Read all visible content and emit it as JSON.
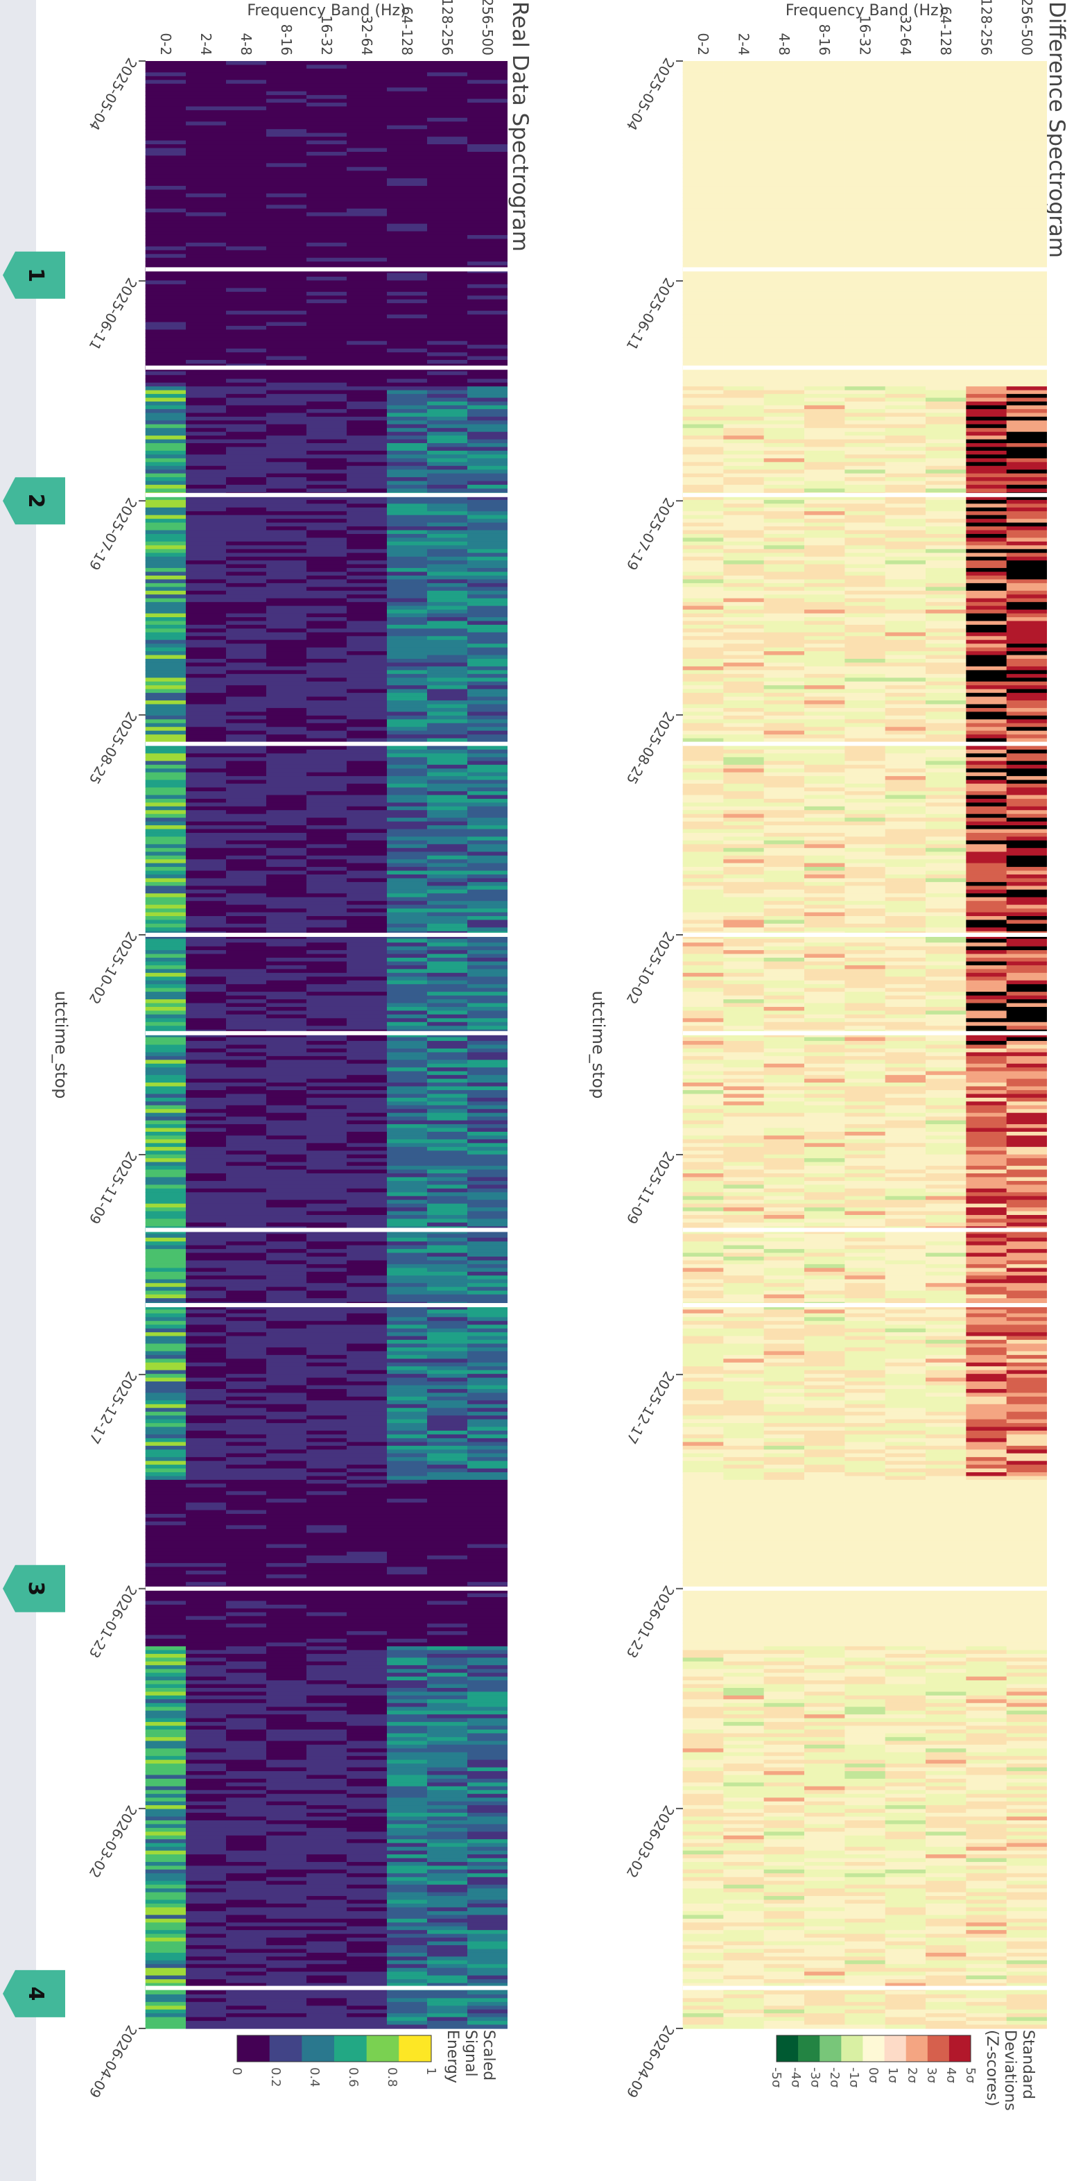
{
  "chart_data": [
    {
      "type": "heatmap",
      "title": "Difference Spectrogram",
      "xlabel": "utctime_stop",
      "ylabel": "Frequency Band (Hz)",
      "x_ticks": [
        "2025-05-04",
        "2025-06-11",
        "2025-07-19",
        "2025-08-25",
        "2025-10-02",
        "2025-11-09",
        "2025-12-17",
        "2026-01-23",
        "2026-03-02",
        "2026-04-09"
      ],
      "y_categories": [
        "256-500",
        "128-256",
        "64-128",
        "32-64",
        "16-32",
        "8-16",
        "4-8",
        "2-4",
        "0-2"
      ],
      "colorbar": {
        "title": [
          "Standard",
          "Deviations",
          "(Z-scores)"
        ],
        "ticks": [
          "5σ",
          "4σ",
          "3σ",
          "2σ",
          "1σ",
          "0σ",
          "-1σ",
          "-2σ",
          "-3σ",
          "-4σ",
          "-5σ"
        ],
        "colors": [
          "#b2182b",
          "#d6604d",
          "#f4a582",
          "#fddbc7",
          "#fef9d6",
          "#d9f0a3",
          "#78c679",
          "#238443",
          "#005a32"
        ]
      }
    },
    {
      "type": "heatmap",
      "title": "Real Data Spectrogram",
      "xlabel": "utctime_stop",
      "ylabel": "Frequency Band (Hz)",
      "x_ticks": [
        "2025-05-04",
        "2025-06-11",
        "2025-07-19",
        "2025-08-25",
        "2025-10-02",
        "2025-11-09",
        "2025-12-17",
        "2026-01-23",
        "2026-03-02",
        "2026-04-09"
      ],
      "y_categories": [
        "256-500",
        "128-256",
        "64-128",
        "32-64",
        "16-32",
        "8-16",
        "4-8",
        "2-4",
        "0-2"
      ],
      "colorbar": {
        "title": [
          "Scaled",
          "Signal",
          "Energy"
        ],
        "ticks": [
          "1",
          "0.8",
          "0.6",
          "0.4",
          "0.2",
          "0"
        ],
        "colors": [
          "#fde725",
          "#7ad151",
          "#22a884",
          "#2a788e",
          "#414487",
          "#440154"
        ]
      }
    }
  ],
  "markers": [
    {
      "label": "1",
      "date": "2025-06-10"
    },
    {
      "label": "2",
      "date": "2025-07-19"
    },
    {
      "label": "3",
      "date": "2026-01-23"
    },
    {
      "label": "4",
      "date": "2026-04-03"
    }
  ]
}
